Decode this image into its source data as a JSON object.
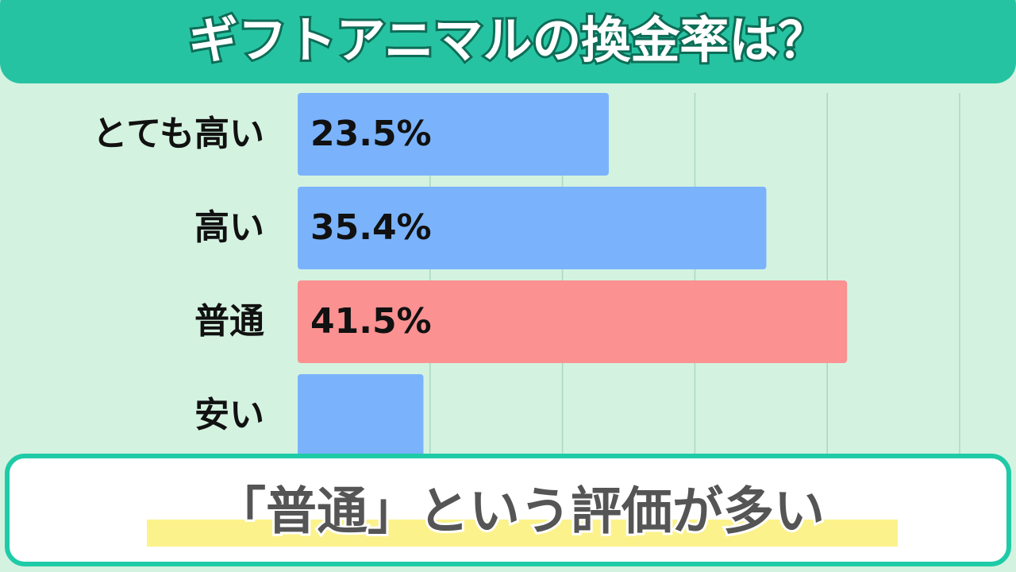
{
  "chart_data": {
    "type": "bar",
    "orientation": "horizontal",
    "title": "ギフトアニマルの換金率は？",
    "categories": [
      "とても高い",
      "高い",
      "普通",
      "安い"
    ],
    "values": [
      23.5,
      35.4,
      41.5,
      9.5
    ],
    "value_labels": [
      "23.5%",
      "35.4%",
      "41.5%",
      null
    ],
    "colors": [
      "#7ab3fb",
      "#7ab3fb",
      "#fb9191",
      "#7ab3fb"
    ],
    "xlim": [
      0,
      50
    ],
    "xticks": [
      10,
      20,
      30,
      40,
      50
    ],
    "grid": true,
    "annotation": "「普通」という評価が多い"
  }
}
